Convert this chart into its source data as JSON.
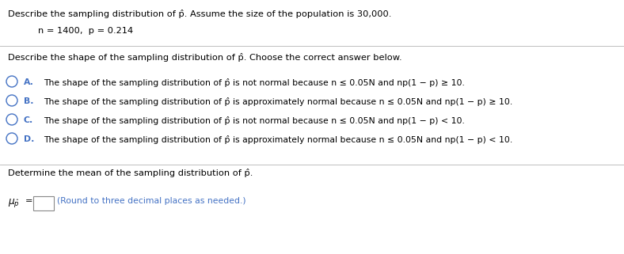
{
  "title_line": "Describe the sampling distribution of p̂. Assume the size of the population is 30,000.",
  "params_line": "n = 1400,  p = 0.214",
  "question_line": "Describe the shape of the sampling distribution of p̂. Choose the correct answer below.",
  "option_A": "The shape of the sampling distribution of p̂ is not normal because n ≤ 0.05N and np(1 − p) ≥ 10.",
  "option_B": "The shape of the sampling distribution of p̂ is approximately normal because n ≤ 0.05N and np(1 − p) ≥ 10.",
  "option_C": "The shape of the sampling distribution of p̂ is not normal because n ≤ 0.05N and np(1 − p) < 10.",
  "option_D": "The shape of the sampling distribution of p̂ is approximately normal because n ≤ 0.05N and np(1 − p) < 10.",
  "mean_line": "Determine the mean of the sampling distribution of p̂.",
  "mean_note": "(Round to three decimal places as needed.)",
  "bg_color": "#ffffff",
  "text_color": "#000000",
  "circle_color": "#4472c4",
  "label_color": "#4472c4",
  "separator_color": "#c0c0c0",
  "main_font_size": 8.2,
  "option_font_size": 7.8,
  "mean_note_font_size": 7.8
}
